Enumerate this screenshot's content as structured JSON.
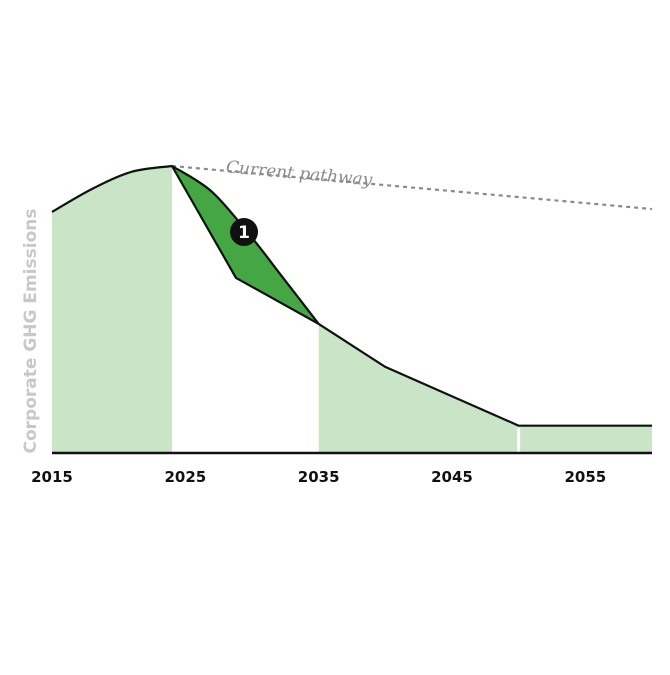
{
  "chart_data": {
    "type": "area",
    "title": "",
    "xlabel": "",
    "ylabel": "Corporate GHG Emissions",
    "x_ticks": [
      "2015",
      "2025",
      "2035",
      "2045",
      "2055"
    ],
    "xlim": [
      2015,
      2060
    ],
    "ylim": [
      0,
      100
    ],
    "grid": false,
    "series": [
      {
        "role": "historical",
        "points": [
          [
            2015,
            84
          ],
          [
            2018,
            92
          ],
          [
            2021,
            98
          ],
          [
            2024,
            100
          ]
        ]
      },
      {
        "role": "reduction",
        "points": [
          [
            2024,
            100
          ],
          [
            2028.8,
            61
          ],
          [
            2035,
            45
          ],
          [
            2040,
            30
          ],
          [
            2050,
            9.5
          ],
          [
            2060,
            9.5
          ]
        ]
      },
      {
        "role": "accelerated",
        "points": [
          [
            2024,
            100
          ],
          [
            2027,
            91
          ],
          [
            2030,
            75
          ],
          [
            2032,
            63
          ],
          [
            2035,
            45
          ]
        ]
      },
      {
        "role": "current-pathway",
        "points": [
          [
            2024,
            100
          ],
          [
            2060,
            85
          ]
        ]
      }
    ],
    "shaded_regions": [
      {
        "from": 2015,
        "to": 2024,
        "color": "#c9e4c6"
      },
      {
        "from": 2035,
        "to": 2050,
        "color": "#c9e4c6"
      },
      {
        "from": 2050,
        "to": 2060,
        "color": "#c9e4c6"
      }
    ],
    "highlight": {
      "from": 2024,
      "to": 2035,
      "color": "#45a644"
    },
    "annotations": [
      {
        "text": "Current pathway",
        "x": 2033.5,
        "y": 95.5
      },
      {
        "marker": "1",
        "x": 2029.4,
        "y": 77
      }
    ]
  },
  "colors": {
    "light_green": "#c9e4c6",
    "dark_green": "#45a644",
    "line": "#111111",
    "dashed": "#8a8a8a",
    "ylabel": "#c8c8c8"
  }
}
